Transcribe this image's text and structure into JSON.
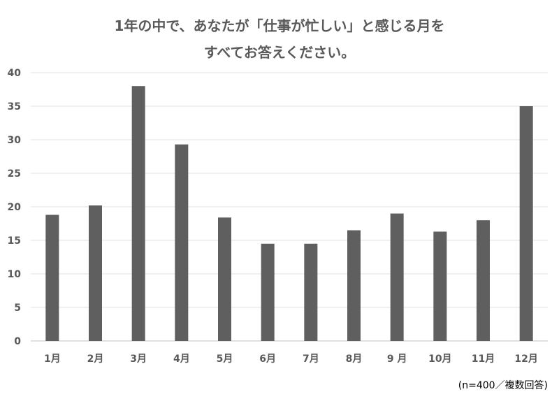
{
  "chart_data": {
    "type": "bar",
    "title": [
      "1年の中で、あなたが「仕事が忙しい」と感じる月を",
      "すべてお答えください。"
    ],
    "categories": [
      "1月",
      "2月",
      "3月",
      "4月",
      "5月",
      "6月",
      "7月",
      "8月",
      "9 月",
      "10月",
      "11月",
      "12月"
    ],
    "values": [
      18.8,
      20.2,
      38,
      29.3,
      18.4,
      14.5,
      14.5,
      16.5,
      19,
      16.3,
      18,
      35
    ],
    "ylim": [
      0,
      40
    ],
    "yticks": [
      0,
      5,
      10,
      15,
      20,
      25,
      30,
      35,
      40
    ],
    "grid": true,
    "bar_color": "#5f5f5f",
    "note": "(n=400／複数回答)"
  }
}
